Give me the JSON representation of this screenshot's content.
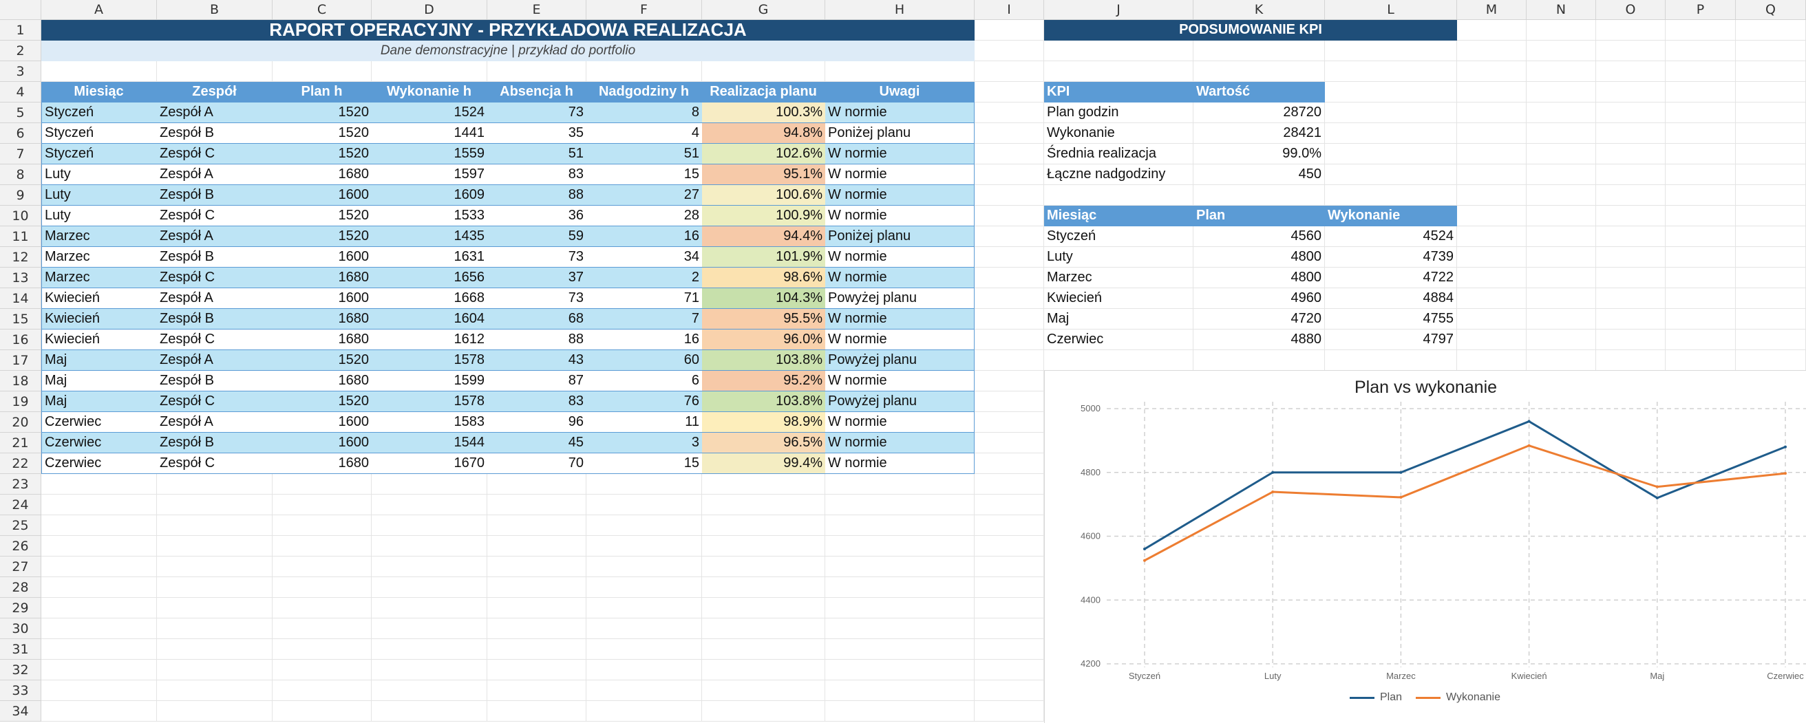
{
  "columns": [
    "A",
    "B",
    "C",
    "D",
    "E",
    "F",
    "G",
    "H",
    "I",
    "J",
    "K",
    "L",
    "M",
    "N",
    "O",
    "P",
    "Q"
  ],
  "rows": [
    "1",
    "2",
    "3",
    "4",
    "5",
    "6",
    "7",
    "8",
    "9",
    "10",
    "11",
    "12",
    "13",
    "14",
    "15",
    "16",
    "17",
    "18",
    "19",
    "20",
    "21",
    "22",
    "23",
    "24",
    "25",
    "26",
    "27",
    "28",
    "29",
    "30",
    "31",
    "32",
    "33",
    "34"
  ],
  "report": {
    "title": "RAPORT OPERACYJNY - PRZYKŁADOWA REALIZACJA",
    "subtitle": "Dane demonstracyjne | przykład do portfolio",
    "headers": [
      "Miesiąc",
      "Zespół",
      "Plan h",
      "Wykonanie h",
      "Absencja h",
      "Nadgodziny h",
      "Realizacja planu",
      "Uwagi"
    ],
    "rows": [
      [
        "Styczeń",
        "Zespół A",
        "1520",
        "1524",
        "73",
        "8",
        "100.3%",
        "W normie"
      ],
      [
        "Styczeń",
        "Zespół B",
        "1520",
        "1441",
        "35",
        "4",
        "94.8%",
        "Poniżej planu"
      ],
      [
        "Styczeń",
        "Zespół C",
        "1520",
        "1559",
        "51",
        "51",
        "102.6%",
        "W normie"
      ],
      [
        "Luty",
        "Zespół A",
        "1680",
        "1597",
        "83",
        "15",
        "95.1%",
        "W normie"
      ],
      [
        "Luty",
        "Zespół B",
        "1600",
        "1609",
        "88",
        "27",
        "100.6%",
        "W normie"
      ],
      [
        "Luty",
        "Zespół C",
        "1520",
        "1533",
        "36",
        "28",
        "100.9%",
        "W normie"
      ],
      [
        "Marzec",
        "Zespół A",
        "1520",
        "1435",
        "59",
        "16",
        "94.4%",
        "Poniżej planu"
      ],
      [
        "Marzec",
        "Zespół B",
        "1600",
        "1631",
        "73",
        "34",
        "101.9%",
        "W normie"
      ],
      [
        "Marzec",
        "Zespół C",
        "1680",
        "1656",
        "37",
        "2",
        "98.6%",
        "W normie"
      ],
      [
        "Kwiecień",
        "Zespół A",
        "1600",
        "1668",
        "73",
        "71",
        "104.3%",
        "Powyżej planu"
      ],
      [
        "Kwiecień",
        "Zespół B",
        "1680",
        "1604",
        "68",
        "7",
        "95.5%",
        "W normie"
      ],
      [
        "Kwiecień",
        "Zespół C",
        "1680",
        "1612",
        "88",
        "16",
        "96.0%",
        "W normie"
      ],
      [
        "Maj",
        "Zespół A",
        "1520",
        "1578",
        "43",
        "60",
        "103.8%",
        "Powyżej planu"
      ],
      [
        "Maj",
        "Zespół B",
        "1680",
        "1599",
        "87",
        "6",
        "95.2%",
        "W normie"
      ],
      [
        "Maj",
        "Zespół C",
        "1520",
        "1578",
        "83",
        "76",
        "103.8%",
        "Powyżej planu"
      ],
      [
        "Czerwiec",
        "Zespół A",
        "1600",
        "1583",
        "96",
        "11",
        "98.9%",
        "W normie"
      ],
      [
        "Czerwiec",
        "Zespół B",
        "1600",
        "1544",
        "45",
        "3",
        "96.5%",
        "W normie"
      ],
      [
        "Czerwiec",
        "Zespół C",
        "1680",
        "1670",
        "70",
        "15",
        "99.4%",
        "W normie"
      ]
    ],
    "pct_colors": [
      "#f7ecc4",
      "#f6c9a8",
      "#e3ecbd",
      "#f6c9a8",
      "#f5eec4",
      "#eceebf",
      "#f6c9a8",
      "#e0ebbc",
      "#fbe2b0",
      "#c7e0ab",
      "#f8cda9",
      "#f9d2ac",
      "#cde3b0",
      "#f6c9a8",
      "#cde3b0",
      "#fdeebb",
      "#f8d9b4",
      "#f4edc2"
    ]
  },
  "kpi": {
    "title": "PODSUMOWANIE KPI",
    "headers": [
      "KPI",
      "Wartość"
    ],
    "rows": [
      [
        "Plan godzin",
        "28720"
      ],
      [
        "Wykonanie",
        "28421"
      ],
      [
        "Średnia realizacja",
        "99.0%"
      ],
      [
        "Łączne nadgodziny",
        "450"
      ]
    ]
  },
  "monthly": {
    "headers": [
      "Miesiąc",
      "Plan",
      "Wykonanie"
    ],
    "rows": [
      [
        "Styczeń",
        "4560",
        "4524"
      ],
      [
        "Luty",
        "4800",
        "4739"
      ],
      [
        "Marzec",
        "4800",
        "4722"
      ],
      [
        "Kwiecień",
        "4960",
        "4884"
      ],
      [
        "Maj",
        "4720",
        "4755"
      ],
      [
        "Czerwiec",
        "4880",
        "4797"
      ]
    ]
  },
  "colors": {
    "title_bg": "#1f4e79",
    "header_bg": "#5b9bd5",
    "band": "#bde4f5",
    "plan_line": "#1f5c8b",
    "actual_line": "#ed7d31"
  },
  "chart_data": {
    "type": "line",
    "title": "Plan vs wykonanie",
    "categories": [
      "Styczeń",
      "Luty",
      "Marzec",
      "Kwiecień",
      "Maj",
      "Czerwiec"
    ],
    "series": [
      {
        "name": "Plan",
        "values": [
          4560,
          4800,
          4800,
          4960,
          4720,
          4880
        ],
        "color": "#1f5c8b"
      },
      {
        "name": "Wykonanie",
        "values": [
          4524,
          4739,
          4722,
          4884,
          4755,
          4797
        ],
        "color": "#ed7d31"
      }
    ],
    "yticks": [
      "4200",
      "4400",
      "4600",
      "4800",
      "5000"
    ],
    "ylim": [
      4200,
      5000
    ],
    "grid": true,
    "legend": "bottom"
  }
}
